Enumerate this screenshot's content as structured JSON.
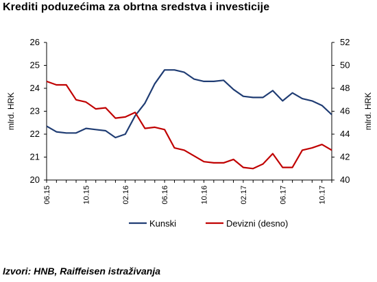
{
  "title": "Krediti poduzećima za obrtna sredstva i investicije",
  "source": "Izvori: HNB, Raiffeisen istraživanja",
  "chart_data": {
    "type": "line",
    "ylabel_left": "mlrd. HRK",
    "ylabel_right": "mlrd. HRK",
    "ylim_left": [
      20,
      26
    ],
    "ylim_right": [
      40,
      52
    ],
    "yticks_left": [
      "20",
      "21",
      "22",
      "23",
      "24",
      "25",
      "26"
    ],
    "yticks_right": [
      "40",
      "42",
      "44",
      "46",
      "48",
      "50",
      "52"
    ],
    "x_ticks": [
      "06.15",
      "10.15",
      "02.16",
      "06.16",
      "10.16",
      "02.17",
      "06.17",
      "10.17"
    ],
    "x_tick_index": [
      0,
      4,
      8,
      12,
      16,
      20,
      24,
      28
    ],
    "grid": false,
    "legend_position": "bottom",
    "series": [
      {
        "name": "Kunski",
        "axis": "left",
        "color": "#1f3c73",
        "values": [
          22.35,
          22.1,
          22.05,
          22.05,
          22.25,
          22.2,
          22.15,
          21.85,
          22.0,
          22.8,
          23.35,
          24.2,
          24.8,
          24.8,
          24.7,
          24.4,
          24.3,
          24.3,
          24.35,
          23.95,
          23.65,
          23.6,
          23.6,
          23.9,
          23.45,
          23.8,
          23.55,
          23.45,
          23.25,
          22.85
        ]
      },
      {
        "name": "Devizni (desno)",
        "axis": "right",
        "color": "#c00000",
        "values": [
          48.6,
          48.3,
          48.3,
          47.0,
          46.8,
          46.2,
          46.3,
          45.4,
          45.5,
          45.9,
          44.5,
          44.6,
          44.4,
          42.8,
          42.6,
          42.1,
          41.6,
          41.5,
          41.5,
          41.8,
          41.1,
          41.0,
          41.4,
          42.3,
          41.1,
          41.1,
          42.6,
          42.8,
          43.1,
          42.6
        ]
      }
    ]
  }
}
